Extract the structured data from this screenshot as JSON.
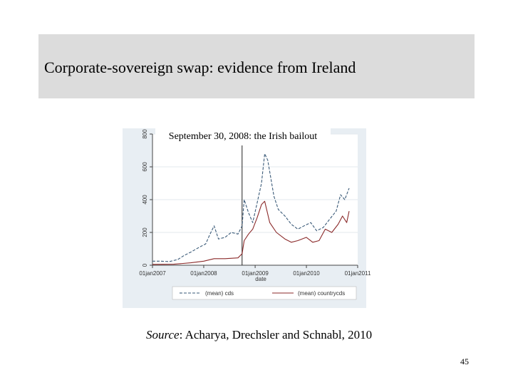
{
  "slide": {
    "title": "Corporate-sovereign swap: evidence from Ireland",
    "annotation": "September 30, 2008: the Irish bailout",
    "source_label": "Source",
    "source_text": ": Acharya, Drechsler and  Schnabl, 2010",
    "page_number": "45"
  },
  "chart_data": {
    "type": "line",
    "title": "",
    "xlabel": "date",
    "ylabel": "",
    "x_ticks": [
      "01jan2007",
      "01jan2008",
      "01jan2009",
      "01jan2010",
      "01jan2011"
    ],
    "y_ticks": [
      "0",
      "200",
      "400",
      "600",
      "800"
    ],
    "ylim": [
      0,
      800
    ],
    "xlim": [
      "2007-01-01",
      "2011-01-01"
    ],
    "vertical_line": "2008-09-30",
    "legend_position": "bottom",
    "grid": true,
    "series": [
      {
        "name": "(mean) cds",
        "color": "#3a5a78",
        "style": "dashed",
        "points": [
          [
            "2007-01-01",
            25
          ],
          [
            "2007-03-01",
            25
          ],
          [
            "2007-05-01",
            22
          ],
          [
            "2007-07-01",
            35
          ],
          [
            "2007-08-15",
            60
          ],
          [
            "2007-10-01",
            80
          ],
          [
            "2007-12-01",
            110
          ],
          [
            "2008-01-15",
            130
          ],
          [
            "2008-02-15",
            190
          ],
          [
            "2008-03-15",
            240
          ],
          [
            "2008-04-15",
            160
          ],
          [
            "2008-06-01",
            170
          ],
          [
            "2008-07-15",
            200
          ],
          [
            "2008-09-01",
            190
          ],
          [
            "2008-09-30",
            240
          ],
          [
            "2008-10-15",
            400
          ],
          [
            "2008-11-15",
            320
          ],
          [
            "2008-12-15",
            260
          ],
          [
            "2009-01-15",
            380
          ],
          [
            "2009-02-15",
            500
          ],
          [
            "2009-03-10",
            680
          ],
          [
            "2009-04-01",
            640
          ],
          [
            "2009-05-15",
            420
          ],
          [
            "2009-06-15",
            340
          ],
          [
            "2009-08-01",
            300
          ],
          [
            "2009-09-15",
            250
          ],
          [
            "2009-11-01",
            220
          ],
          [
            "2009-12-15",
            240
          ],
          [
            "2010-02-01",
            260
          ],
          [
            "2010-03-15",
            210
          ],
          [
            "2010-05-01",
            230
          ],
          [
            "2010-06-15",
            280
          ],
          [
            "2010-08-01",
            330
          ],
          [
            "2010-09-01",
            430
          ],
          [
            "2010-10-01",
            400
          ],
          [
            "2010-11-01",
            470
          ]
        ]
      },
      {
        "name": "(mean) countrycds",
        "color": "#8b2a2a",
        "style": "solid",
        "points": [
          [
            "2007-01-01",
            5
          ],
          [
            "2007-06-01",
            6
          ],
          [
            "2007-10-01",
            15
          ],
          [
            "2008-01-01",
            25
          ],
          [
            "2008-03-15",
            40
          ],
          [
            "2008-06-01",
            40
          ],
          [
            "2008-09-01",
            45
          ],
          [
            "2008-09-30",
            70
          ],
          [
            "2008-10-15",
            150
          ],
          [
            "2008-11-15",
            190
          ],
          [
            "2008-12-15",
            220
          ],
          [
            "2009-01-15",
            290
          ],
          [
            "2009-02-15",
            370
          ],
          [
            "2009-03-10",
            390
          ],
          [
            "2009-04-15",
            260
          ],
          [
            "2009-06-01",
            200
          ],
          [
            "2009-08-01",
            160
          ],
          [
            "2009-09-15",
            140
          ],
          [
            "2009-11-01",
            150
          ],
          [
            "2010-01-01",
            170
          ],
          [
            "2010-02-15",
            140
          ],
          [
            "2010-04-01",
            150
          ],
          [
            "2010-05-15",
            220
          ],
          [
            "2010-07-01",
            200
          ],
          [
            "2010-08-15",
            250
          ],
          [
            "2010-09-15",
            300
          ],
          [
            "2010-10-15",
            260
          ],
          [
            "2010-11-01",
            330
          ]
        ]
      }
    ]
  }
}
